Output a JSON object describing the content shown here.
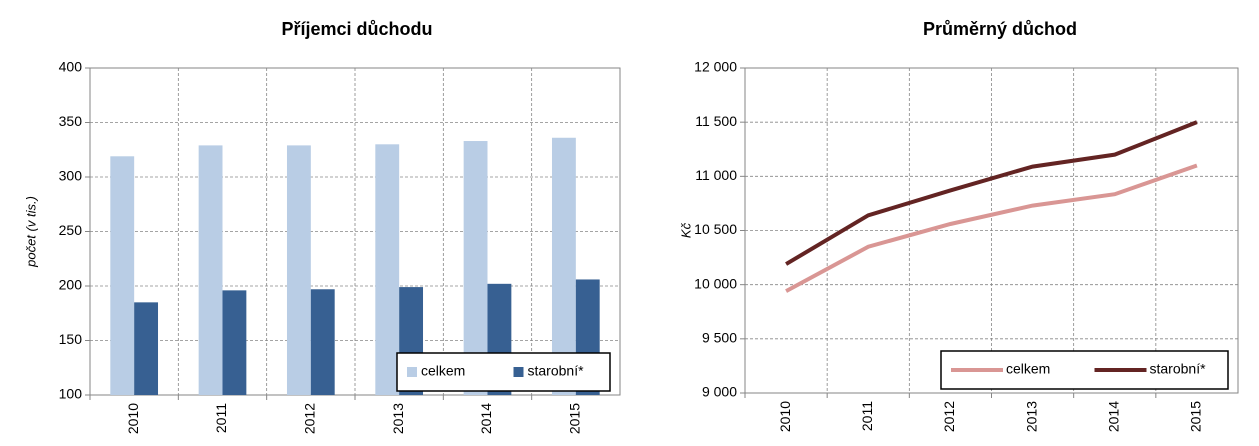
{
  "chart_data": [
    {
      "type": "bar",
      "title": "Příjemci důchodu",
      "y_label": "počet (v tis.)",
      "categories": [
        "2010",
        "2011",
        "2012",
        "2013",
        "2014",
        "2015"
      ],
      "series": [
        {
          "name": "celkem",
          "color": "#b9cde5",
          "values": [
            319,
            329,
            329,
            330,
            333,
            336
          ]
        },
        {
          "name": "starobní*",
          "color": "#376092",
          "values": [
            185,
            196,
            197,
            199,
            202,
            206
          ]
        }
      ],
      "ylim": [
        100,
        400
      ],
      "yticks": [
        100,
        150,
        200,
        250,
        300,
        350,
        400
      ],
      "grid": true,
      "legend": "lower right"
    },
    {
      "type": "line",
      "title": "Průměrný důchod",
      "y_label": "Kč",
      "categories": [
        "2010",
        "2011",
        "2012",
        "2013",
        "2014",
        "2015"
      ],
      "series": [
        {
          "name": "celkem",
          "color": "#d99694",
          "values": [
            9940,
            10350,
            10560,
            10730,
            10835,
            11100
          ]
        },
        {
          "name": "starobní*",
          "color": "#632423",
          "values": [
            10190,
            10640,
            10870,
            11090,
            11200,
            11500
          ]
        }
      ],
      "ylim": [
        9000,
        12000
      ],
      "yticks": [
        {
          "value": 9000,
          "label": "9 000"
        },
        {
          "value": 9500,
          "label": "9 500"
        },
        {
          "value": 10000,
          "label": "10 000"
        },
        {
          "value": 10500,
          "label": "10 500"
        },
        {
          "value": 11000,
          "label": "11 000"
        },
        {
          "value": 11500,
          "label": "11 500"
        },
        {
          "value": 12000,
          "label": "12 000"
        }
      ],
      "grid": true,
      "legend": "lower right"
    }
  ]
}
